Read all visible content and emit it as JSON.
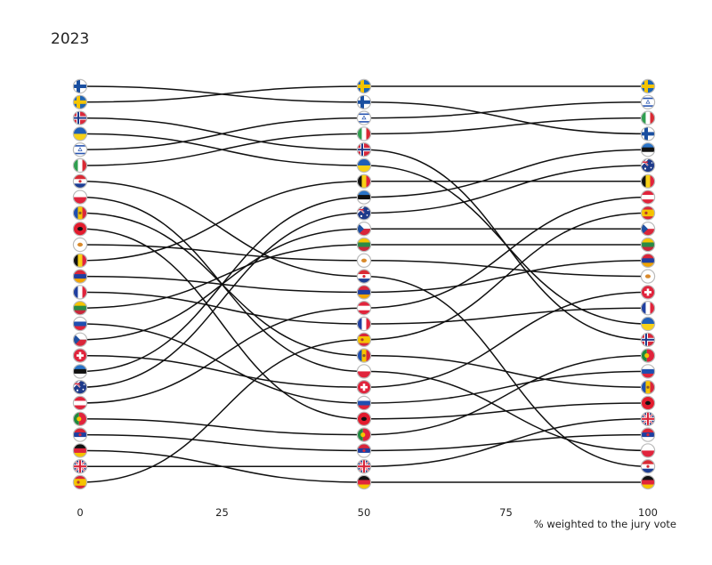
{
  "title": "2023",
  "chart_data": {
    "type": "line",
    "title": "2023",
    "xlabel": "% weighted to the jury vote",
    "ylabel": "",
    "x_ticks": [
      0,
      25,
      50,
      75,
      100
    ],
    "xlim": [
      0,
      100
    ],
    "description_note": "bump chart of country ranking as the jury weight changes",
    "columns": [
      {
        "x": 0,
        "order": [
          "Finland",
          "Sweden",
          "Norway",
          "Ukraine",
          "Israel",
          "Italy",
          "Croatia",
          "Poland",
          "Moldova",
          "Albania",
          "Cyprus",
          "Belgium",
          "Armenia",
          "France",
          "Lithuania",
          "Slovenia",
          "Czechia",
          "Switzerland",
          "Estonia",
          "Australia",
          "Austria",
          "Portugal",
          "Serbia",
          "Germany",
          "United Kingdom",
          "Spain"
        ]
      },
      {
        "x": 50,
        "order": [
          "Sweden",
          "Finland",
          "Israel",
          "Italy",
          "Norway",
          "Ukraine",
          "Belgium",
          "Estonia",
          "Australia",
          "Czechia",
          "Lithuania",
          "Cyprus",
          "Croatia",
          "Armenia",
          "Austria",
          "France",
          "Spain",
          "Moldova",
          "Poland",
          "Switzerland",
          "Slovenia",
          "Albania",
          "Portugal",
          "Serbia",
          "United Kingdom",
          "Germany"
        ]
      },
      {
        "x": 100,
        "order": [
          "Sweden",
          "Israel",
          "Italy",
          "Finland",
          "Estonia",
          "Australia",
          "Belgium",
          "Austria",
          "Spain",
          "Czechia",
          "Lithuania",
          "Armenia",
          "Cyprus",
          "Switzerland",
          "France",
          "Ukraine",
          "Norway",
          "Portugal",
          "Slovenia",
          "Moldova",
          "Albania",
          "United Kingdom",
          "Serbia",
          "Poland",
          "Croatia",
          "Germany"
        ]
      }
    ],
    "colors": {
      "line": "#111111",
      "flag_border": "#bbbbbb"
    }
  },
  "flags": {
    "Finland": {
      "type": "nordic",
      "bg": "#ffffff",
      "cross": "#1a4fa0"
    },
    "Sweden": {
      "type": "nordic",
      "bg": "#1f64b4",
      "cross": "#f5c400"
    },
    "Norway": {
      "type": "nordic2",
      "bg": "#d8283c",
      "cross": "#ffffff",
      "inner": "#1e3a8a"
    },
    "Ukraine": {
      "type": "h",
      "stripes": [
        "#1f5fb8",
        "#f7d117"
      ]
    },
    "Israel": {
      "type": "israel",
      "bg": "#ffffff",
      "fg": "#2653b0"
    },
    "Italy": {
      "type": "v",
      "stripes": [
        "#2f9e4f",
        "#ffffff",
        "#d92a34"
      ]
    },
    "Croatia": {
      "type": "h",
      "stripes": [
        "#d92a34",
        "#ffffff",
        "#1d3e94"
      ],
      "emblem": "#d92a34"
    },
    "Poland": {
      "type": "h",
      "stripes": [
        "#ffffff",
        "#e0243c"
      ]
    },
    "Moldova": {
      "type": "v",
      "stripes": [
        "#1f4fb0",
        "#f5c400",
        "#d9263a"
      ],
      "emblem": "#8a5a2a"
    },
    "Albania": {
      "type": "solid",
      "bg": "#e21c2e",
      "emblem": "#111111"
    },
    "Cyprus": {
      "type": "solid",
      "bg": "#ffffff",
      "emblem": "#d98a2b"
    },
    "Belgium": {
      "type": "v",
      "stripes": [
        "#111111",
        "#f7d117",
        "#e0243c"
      ]
    },
    "Armenia": {
      "type": "h",
      "stripes": [
        "#d9263a",
        "#1f3fa0",
        "#f2a400"
      ]
    },
    "France": {
      "type": "v",
      "stripes": [
        "#1f3fa0",
        "#ffffff",
        "#e0243c"
      ]
    },
    "Lithuania": {
      "type": "h",
      "stripes": [
        "#f5c400",
        "#2a8a47",
        "#c8283c"
      ]
    },
    "Slovenia": {
      "type": "h",
      "stripes": [
        "#ffffff",
        "#1f4fb0",
        "#e0243c"
      ],
      "emblem": "#1f4fb0"
    },
    "Czechia": {
      "type": "czech",
      "top": "#ffffff",
      "bottom": "#d9263a",
      "tri": "#1f4fa0"
    },
    "Switzerland": {
      "type": "swiss",
      "bg": "#e0243c",
      "fg": "#ffffff"
    },
    "Estonia": {
      "type": "h",
      "stripes": [
        "#2a74c8",
        "#111111",
        "#ffffff"
      ]
    },
    "Australia": {
      "type": "aus",
      "bg": "#1e3a8a"
    },
    "Austria": {
      "type": "h",
      "stripes": [
        "#e0243c",
        "#ffffff",
        "#e0243c"
      ]
    },
    "Portugal": {
      "type": "portugal",
      "left": "#1f8a3e",
      "right": "#e0243c"
    },
    "Serbia": {
      "type": "h",
      "stripes": [
        "#d9263a",
        "#1f3fa0",
        "#ffffff"
      ],
      "emblem": "#d9263a"
    },
    "Germany": {
      "type": "h",
      "stripes": [
        "#111111",
        "#e0243c",
        "#f5c400"
      ]
    },
    "United Kingdom": {
      "type": "uk",
      "bg": "#1e3a8a"
    },
    "Spain": {
      "type": "h3",
      "stripes": [
        "#d9263a",
        "#f5c400",
        "#d9263a"
      ],
      "emblem": "#b0392b"
    }
  }
}
